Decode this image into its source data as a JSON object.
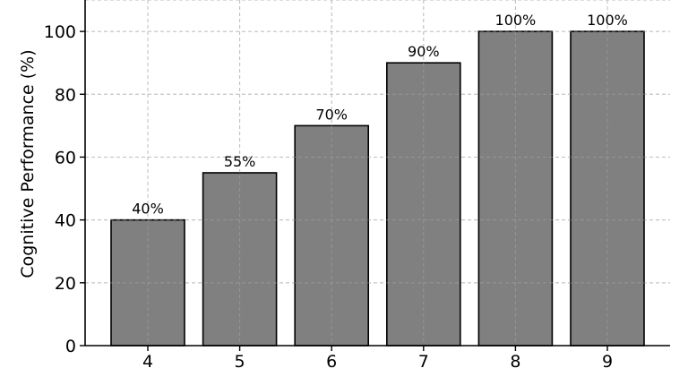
{
  "chart_data": {
    "type": "bar",
    "categories": [
      "4",
      "5",
      "6",
      "7",
      "8",
      "9"
    ],
    "values": [
      40,
      55,
      70,
      90,
      100,
      100
    ],
    "data_labels": [
      "40%",
      "55%",
      "70%",
      "90%",
      "100%",
      "100%"
    ],
    "title": "",
    "xlabel": "",
    "ylabel": "Cognitive Performance (%)",
    "ylim": [
      0,
      110
    ],
    "yticks": [
      0,
      20,
      40,
      60,
      80,
      100
    ],
    "grid": true,
    "bar_color": "#808080",
    "bar_edge_color": "#000000"
  }
}
